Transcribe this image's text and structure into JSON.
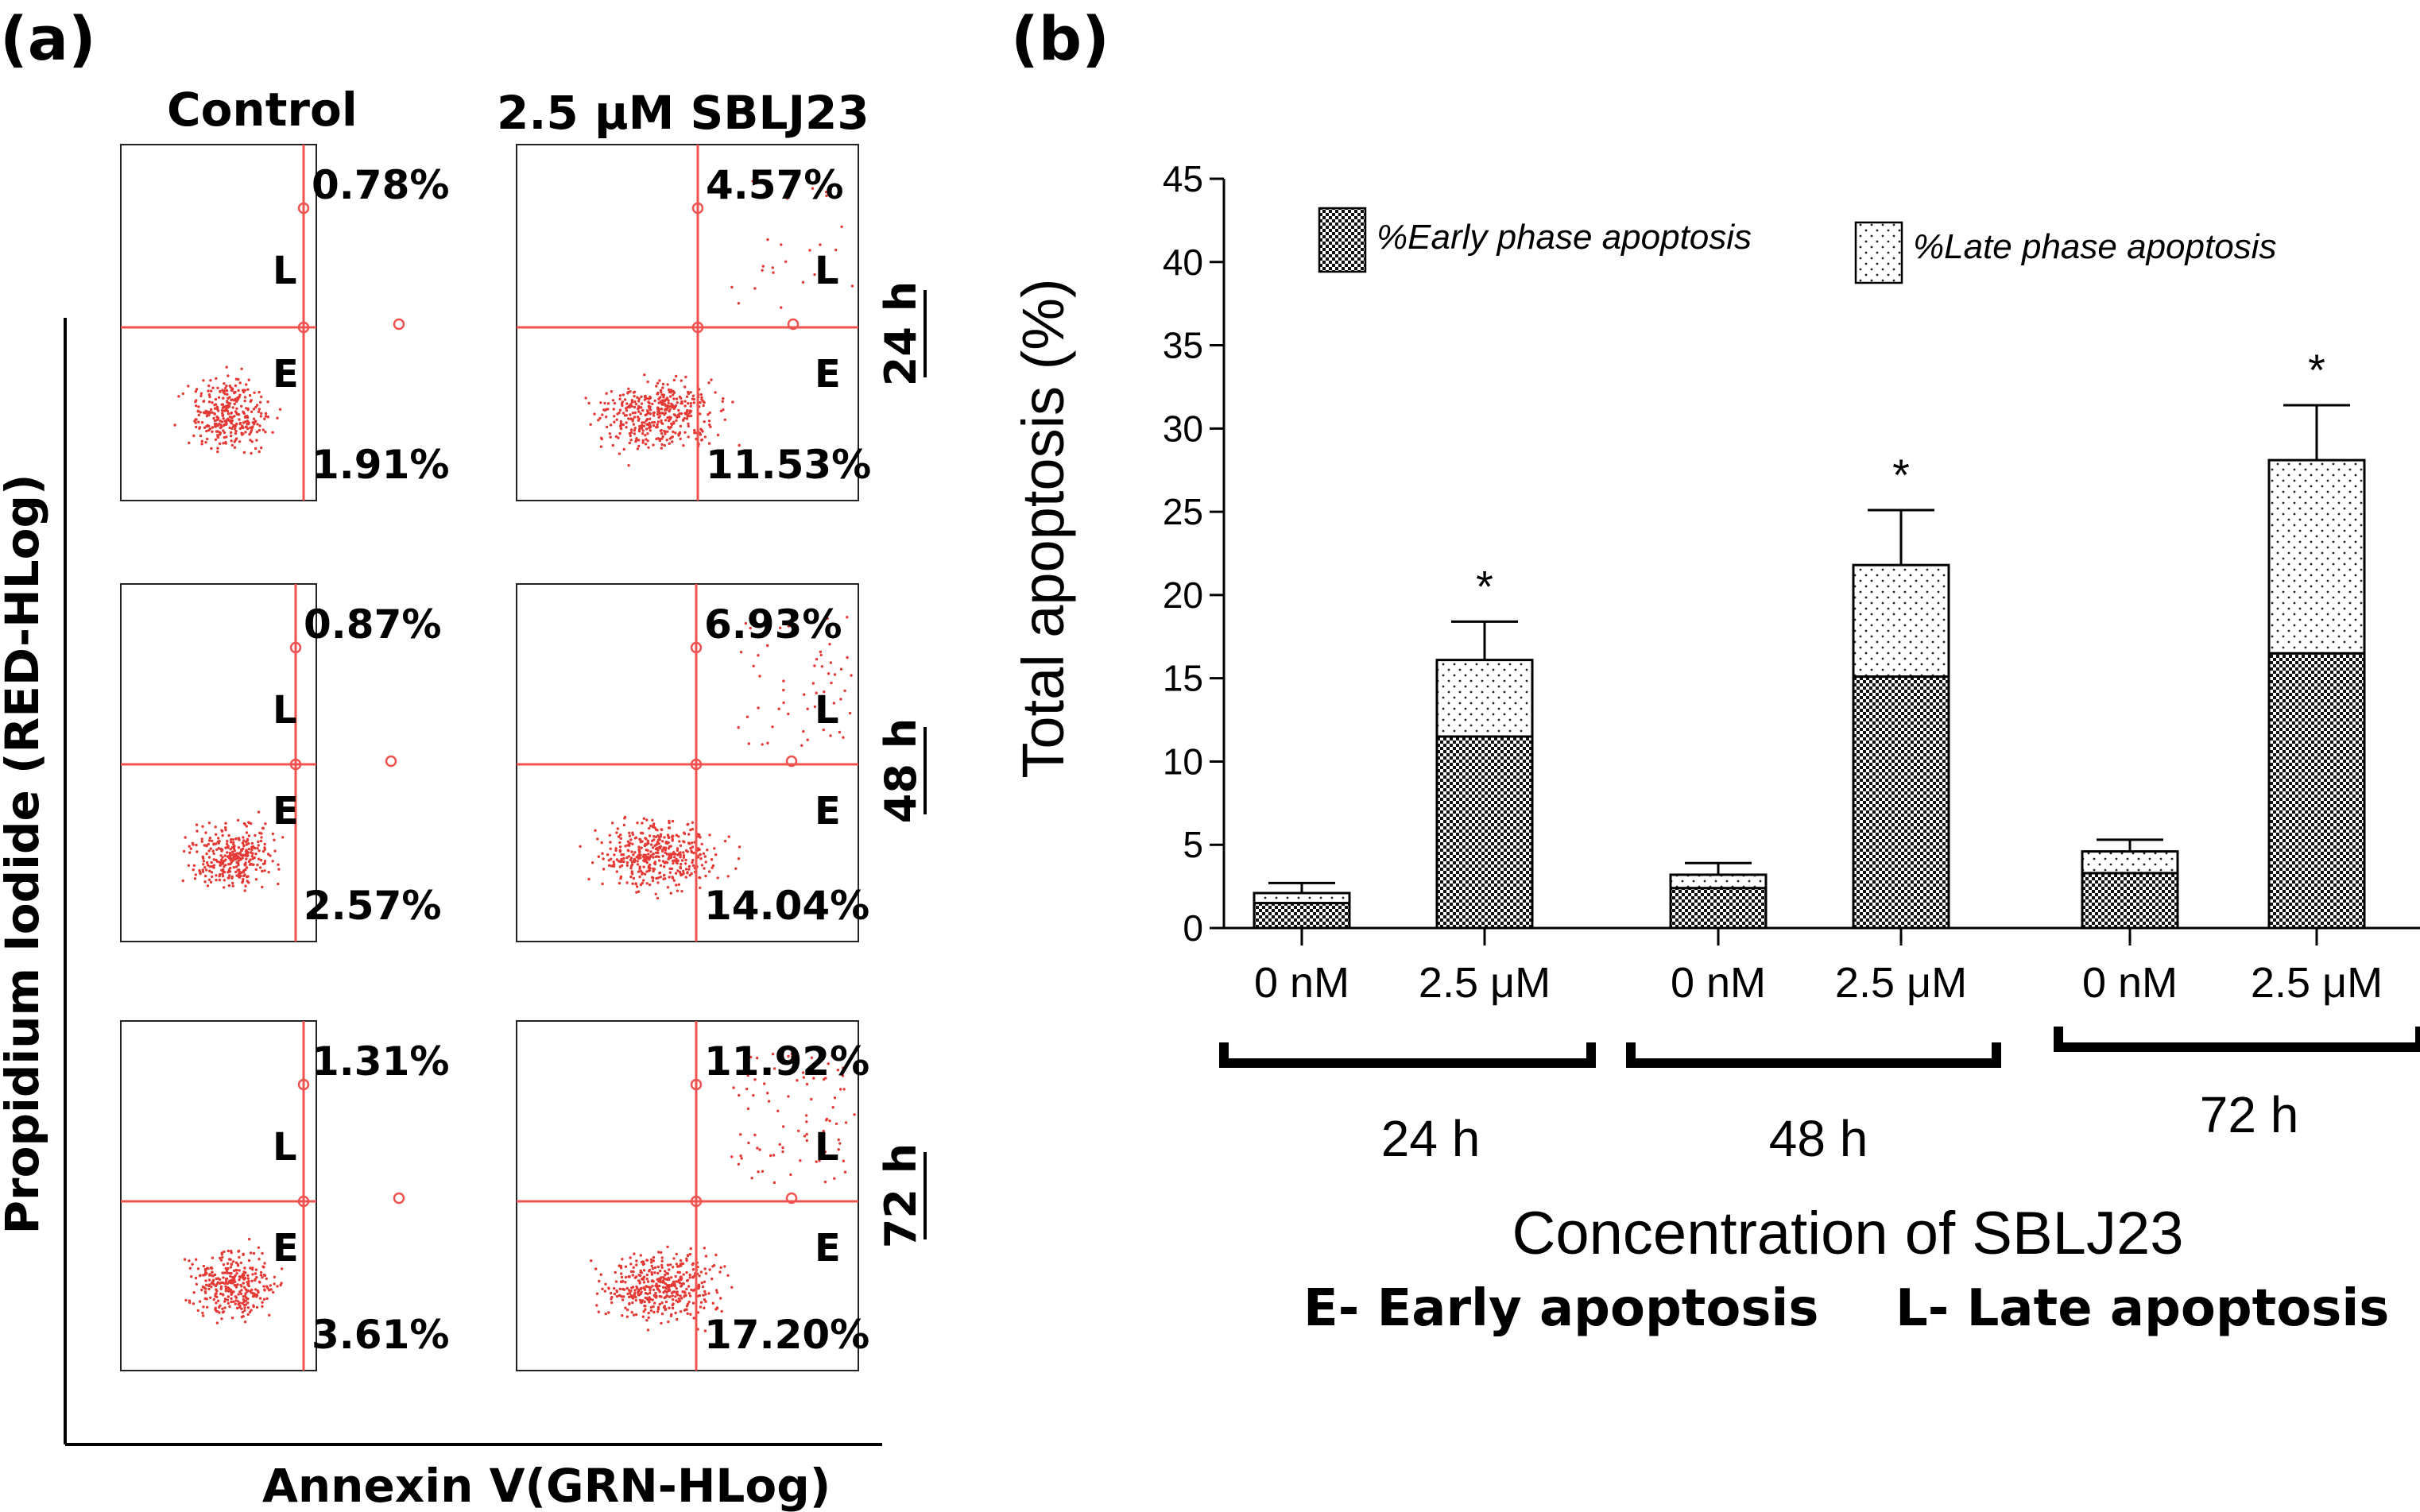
{
  "panel_a": {
    "label": "(a)",
    "col_headers": [
      "Control",
      "2.5 μM SBLJ23"
    ],
    "row_labels": [
      "24 h",
      "48 h",
      "72 h"
    ],
    "y_axis_label": "Propidium Iodide (RED-HLog)",
    "x_axis_label": "Annexin V(GRN-HLog)",
    "quadrant_labels": {
      "late": "L",
      "early": "E"
    },
    "plots": [
      {
        "row": "24 h",
        "condition": "Control",
        "late_pct": "0.78%",
        "early_pct": "1.91%"
      },
      {
        "row": "24 h",
        "condition": "2.5 μM SBLJ23",
        "late_pct": "4.57%",
        "early_pct": "11.53%"
      },
      {
        "row": "48 h",
        "condition": "Control",
        "late_pct": "0.87%",
        "early_pct": "2.57%"
      },
      {
        "row": "48 h",
        "condition": "2.5 μM SBLJ23",
        "late_pct": "6.93%",
        "early_pct": "14.04%"
      },
      {
        "row": "72 h",
        "condition": "Control",
        "late_pct": "1.31%",
        "early_pct": "3.61%"
      },
      {
        "row": "72 h",
        "condition": "2.5 μM SBLJ23",
        "late_pct": "11.92%",
        "early_pct": "17.20%"
      }
    ]
  },
  "panel_b": {
    "label": "(b)",
    "footer_left": "E- Early apoptosis",
    "footer_right": "L- Late apoptosis"
  },
  "chart_data": {
    "type": "bar",
    "stacked": true,
    "title": "",
    "ylabel": "Total apoptosis (%)",
    "xlabel": "Concentration of SBLJ23",
    "ylim": [
      0,
      45
    ],
    "yticks": [
      "0",
      "5",
      "10",
      "15",
      "20",
      "25",
      "30",
      "35",
      "40",
      "45"
    ],
    "categories": [
      "0 nM",
      "2.5 μM",
      "0 nM",
      "2.5 μM",
      "0 nM",
      "2.5 μM"
    ],
    "groups": [
      "24 h",
      "48 h",
      "72 h"
    ],
    "series": [
      {
        "name": "%Early phase apoptosis",
        "values": [
          1.5,
          11.5,
          2.4,
          15.1,
          3.3,
          16.5
        ]
      },
      {
        "name": "%Late phase apoptosis",
        "values": [
          0.6,
          4.6,
          0.8,
          6.7,
          1.3,
          11.6
        ]
      }
    ],
    "error_top": [
      2.7,
      18.4,
      3.9,
      25.1,
      5.3,
      31.4
    ],
    "significance": [
      "",
      "*",
      "",
      "*",
      "",
      "*"
    ],
    "legend_position": "top"
  }
}
